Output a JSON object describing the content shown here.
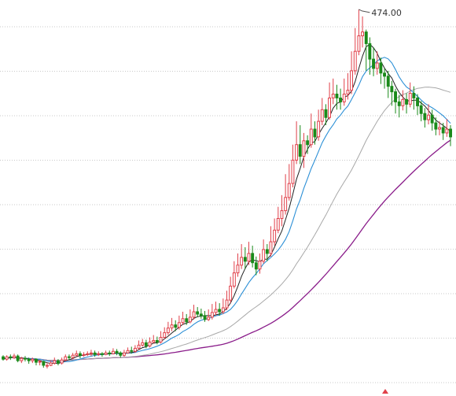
{
  "chart_data": {
    "type": "candlestick",
    "title": "",
    "xlabel": "",
    "ylabel": "",
    "grid": true,
    "legend": "none",
    "ylim": [
      10,
      480
    ],
    "peak_label": "474.00",
    "colors": {
      "up": "#e0404a",
      "down": "#1a8a1a",
      "ma_short": "#222222",
      "ma_mid": "#2b8fd6",
      "ma_long": "#a8a8a8",
      "ma_xlong": "#8a1c8a",
      "grid": "#c9c9c9",
      "marker": "#e0404a"
    },
    "candles": [
      [
        27,
        24,
        29,
        22
      ],
      [
        24,
        27,
        29,
        22
      ],
      [
        27,
        26,
        30,
        23
      ],
      [
        26,
        28,
        31,
        24
      ],
      [
        28,
        22,
        30,
        20
      ],
      [
        22,
        25,
        27,
        19
      ],
      [
        25,
        24,
        28,
        21
      ],
      [
        24,
        22,
        26,
        18
      ],
      [
        22,
        24,
        26,
        19
      ],
      [
        24,
        20,
        25,
        16
      ],
      [
        20,
        21,
        23,
        16
      ],
      [
        21,
        16,
        22,
        13
      ],
      [
        16,
        16,
        19,
        12
      ],
      [
        16,
        19,
        22,
        15
      ],
      [
        19,
        22,
        26,
        17
      ],
      [
        22,
        19,
        24,
        16
      ],
      [
        19,
        23,
        26,
        17
      ],
      [
        23,
        27,
        30,
        21
      ],
      [
        27,
        26,
        30,
        23
      ],
      [
        26,
        29,
        32,
        24
      ],
      [
        29,
        31,
        35,
        27
      ],
      [
        31,
        29,
        34,
        25
      ],
      [
        29,
        30,
        33,
        27
      ],
      [
        30,
        31,
        34,
        28
      ],
      [
        31,
        32,
        36,
        28
      ],
      [
        32,
        30,
        35,
        27
      ],
      [
        30,
        31,
        34,
        28
      ],
      [
        31,
        30,
        33,
        27
      ],
      [
        30,
        32,
        35,
        29
      ],
      [
        32,
        31,
        35,
        28
      ],
      [
        31,
        34,
        38,
        30
      ],
      [
        34,
        32,
        37,
        29
      ],
      [
        32,
        29,
        34,
        26
      ],
      [
        29,
        32,
        36,
        27
      ],
      [
        32,
        35,
        39,
        31
      ],
      [
        35,
        34,
        40,
        31
      ],
      [
        34,
        38,
        42,
        32
      ],
      [
        38,
        42,
        48,
        36
      ],
      [
        42,
        45,
        50,
        40
      ],
      [
        45,
        41,
        49,
        38
      ],
      [
        41,
        46,
        52,
        39
      ],
      [
        46,
        48,
        55,
        44
      ],
      [
        48,
        46,
        53,
        43
      ],
      [
        46,
        52,
        60,
        44
      ],
      [
        52,
        58,
        65,
        50
      ],
      [
        58,
        64,
        72,
        55
      ],
      [
        64,
        68,
        77,
        60
      ],
      [
        68,
        65,
        74,
        60
      ],
      [
        65,
        71,
        80,
        62
      ],
      [
        71,
        76,
        85,
        68
      ],
      [
        76,
        72,
        82,
        68
      ],
      [
        72,
        78,
        88,
        70
      ],
      [
        78,
        85,
        94,
        75
      ],
      [
        85,
        82,
        91,
        78
      ],
      [
        82,
        80,
        89,
        76
      ],
      [
        80,
        75,
        86,
        72
      ],
      [
        75,
        78,
        88,
        73
      ],
      [
        78,
        84,
        95,
        75
      ],
      [
        84,
        88,
        98,
        80
      ],
      [
        88,
        85,
        96,
        80
      ],
      [
        85,
        90,
        102,
        82
      ],
      [
        90,
        100,
        112,
        87
      ],
      [
        100,
        118,
        130,
        96
      ],
      [
        118,
        135,
        150,
        115
      ],
      [
        135,
        145,
        160,
        130
      ],
      [
        145,
        155,
        172,
        140
      ],
      [
        155,
        150,
        168,
        140
      ],
      [
        150,
        160,
        175,
        145
      ],
      [
        160,
        148,
        170,
        142
      ],
      [
        148,
        140,
        156,
        132
      ],
      [
        140,
        150,
        160,
        134
      ],
      [
        150,
        165,
        178,
        147
      ],
      [
        165,
        160,
        172,
        150
      ],
      [
        160,
        175,
        195,
        156
      ],
      [
        175,
        190,
        205,
        170
      ],
      [
        190,
        205,
        220,
        186
      ],
      [
        205,
        215,
        235,
        195
      ],
      [
        215,
        232,
        262,
        210
      ],
      [
        232,
        250,
        275,
        228
      ],
      [
        250,
        280,
        300,
        245
      ],
      [
        280,
        300,
        330,
        275
      ],
      [
        300,
        285,
        325,
        275
      ],
      [
        285,
        305,
        315,
        270
      ],
      [
        305,
        300,
        312,
        288
      ],
      [
        300,
        320,
        340,
        296
      ],
      [
        320,
        310,
        330,
        300
      ],
      [
        310,
        330,
        345,
        305
      ],
      [
        330,
        345,
        360,
        325
      ],
      [
        345,
        335,
        352,
        325
      ],
      [
        335,
        360,
        380,
        332
      ],
      [
        360,
        365,
        385,
        352
      ],
      [
        365,
        360,
        377,
        345
      ],
      [
        360,
        355,
        372,
        345
      ],
      [
        355,
        365,
        385,
        350
      ],
      [
        365,
        370,
        392,
        358
      ],
      [
        370,
        395,
        420,
        365
      ],
      [
        395,
        420,
        450,
        390
      ],
      [
        420,
        440,
        474,
        415
      ],
      [
        440,
        445,
        465,
        425
      ],
      [
        445,
        430,
        448,
        395
      ],
      [
        430,
        410,
        438,
        390
      ],
      [
        410,
        398,
        425,
        388
      ],
      [
        398,
        405,
        420,
        390
      ],
      [
        405,
        392,
        412,
        378
      ],
      [
        392,
        388,
        398,
        372
      ],
      [
        388,
        375,
        395,
        360
      ],
      [
        375,
        368,
        382,
        350
      ],
      [
        368,
        355,
        372,
        340
      ],
      [
        355,
        350,
        364,
        335
      ],
      [
        350,
        358,
        370,
        344
      ],
      [
        358,
        352,
        366,
        340
      ],
      [
        352,
        366,
        380,
        348
      ],
      [
        366,
        360,
        375,
        345
      ],
      [
        360,
        350,
        365,
        338
      ],
      [
        350,
        340,
        356,
        330
      ],
      [
        340,
        332,
        347,
        322
      ],
      [
        332,
        338,
        352,
        326
      ],
      [
        338,
        328,
        345,
        318
      ],
      [
        328,
        320,
        335,
        312
      ],
      [
        320,
        322,
        330,
        312
      ],
      [
        322,
        315,
        328,
        306
      ],
      [
        315,
        320,
        333,
        310
      ],
      [
        320,
        310,
        325,
        298
      ]
    ]
  }
}
